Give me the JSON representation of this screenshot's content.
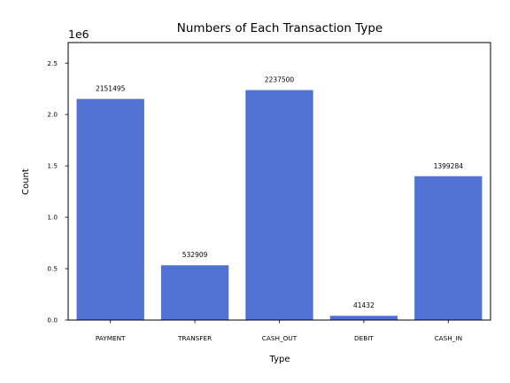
{
  "chart_data": {
    "type": "bar",
    "title": "Numbers of Each Transaction Type",
    "xlabel": "Type",
    "ylabel": "Count",
    "y_multiplier": "1e6",
    "categories": [
      "PAYMENT",
      "TRANSFER",
      "CASH_OUT",
      "DEBIT",
      "CASH_IN"
    ],
    "values": [
      2151495,
      532909,
      2237500,
      41432,
      1399284
    ],
    "value_labels": [
      "2151495",
      "532909",
      "2237500",
      "41432",
      "1399284"
    ],
    "ylim": [
      0,
      2700000
    ],
    "yticks": [
      0,
      500000,
      1000000,
      1500000,
      2000000,
      2500000
    ],
    "ytick_labels": [
      "0.0",
      "0.5",
      "1.0",
      "1.5",
      "2.0",
      "2.5"
    ],
    "bar_color": "#5171d3",
    "grid": false,
    "legend": "none"
  }
}
